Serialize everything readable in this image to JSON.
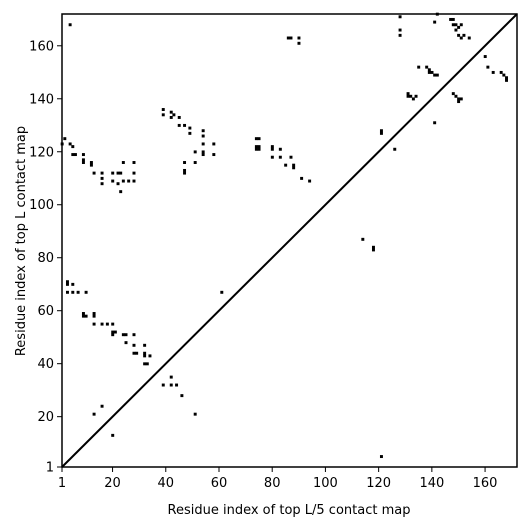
{
  "chart_data": {
    "type": "heatmap",
    "title": "",
    "xlabel": "Residue index of top L/5 contact map",
    "ylabel": "Residue index of top L contact map",
    "xlim": [
      1,
      172
    ],
    "ylim": [
      1,
      172
    ],
    "x_ticks": [
      1,
      20,
      40,
      60,
      80,
      100,
      120,
      140,
      160
    ],
    "y_ticks": [
      1,
      20,
      40,
      60,
      80,
      100,
      120,
      140,
      160
    ],
    "grid": false,
    "diagonal_line": true,
    "colors": {
      "contact": "#000000",
      "background": "#ffffff",
      "diagonal": "#000000"
    },
    "upper_triangle_contacts_top_L5": [
      [
        128,
        166
      ],
      [
        128,
        164
      ],
      [
        131,
        142
      ],
      [
        131,
        141
      ],
      [
        132,
        141
      ],
      [
        133,
        140
      ],
      [
        134,
        141
      ],
      [
        135,
        152
      ],
      [
        138,
        152
      ],
      [
        139,
        151
      ],
      [
        139,
        150
      ],
      [
        140,
        150
      ],
      [
        141,
        149
      ],
      [
        142,
        149
      ],
      [
        141,
        131
      ],
      [
        142,
        172
      ],
      [
        141,
        169
      ],
      [
        147,
        170
      ],
      [
        148,
        170
      ],
      [
        148,
        168
      ],
      [
        149,
        168
      ],
      [
        149,
        166
      ],
      [
        150,
        167
      ],
      [
        150,
        164
      ],
      [
        151,
        168
      ],
      [
        151,
        163
      ],
      [
        152,
        164
      ],
      [
        148,
        142
      ],
      [
        149,
        141
      ],
      [
        150,
        140
      ],
      [
        150,
        139
      ],
      [
        151,
        140
      ],
      [
        154,
        163
      ],
      [
        160,
        156
      ],
      [
        161,
        152
      ],
      [
        163,
        150
      ],
      [
        166,
        150
      ],
      [
        167,
        149
      ],
      [
        168,
        148
      ],
      [
        168,
        147
      ],
      [
        126,
        121
      ],
      [
        128,
        171
      ],
      [
        121,
        5
      ]
    ],
    "lower_triangle_contacts_top_L": [
      [
        4,
        168
      ],
      [
        2,
        125
      ],
      [
        1,
        123
      ],
      [
        4,
        123
      ],
      [
        5,
        122
      ],
      [
        5,
        119
      ],
      [
        6,
        119
      ],
      [
        9,
        119
      ],
      [
        9,
        117
      ],
      [
        9,
        116
      ],
      [
        12,
        116
      ],
      [
        12,
        115
      ],
      [
        13,
        112
      ],
      [
        16,
        112
      ],
      [
        16,
        110
      ],
      [
        16,
        108
      ],
      [
        20,
        112
      ],
      [
        20,
        109
      ],
      [
        22,
        108
      ],
      [
        22,
        112
      ],
      [
        23,
        112
      ],
      [
        23,
        105
      ],
      [
        24,
        116
      ],
      [
        24,
        109
      ],
      [
        26,
        109
      ],
      [
        28,
        116
      ],
      [
        28,
        112
      ],
      [
        28,
        109
      ],
      [
        39,
        136
      ],
      [
        39,
        134
      ],
      [
        42,
        135
      ],
      [
        43,
        134
      ],
      [
        42,
        133
      ],
      [
        45,
        133
      ],
      [
        45,
        130
      ],
      [
        47,
        130
      ],
      [
        49,
        129
      ],
      [
        49,
        127
      ],
      [
        54,
        128
      ],
      [
        54,
        126
      ],
      [
        54,
        123
      ],
      [
        58,
        123
      ],
      [
        54,
        120
      ],
      [
        54,
        119
      ],
      [
        58,
        119
      ],
      [
        51,
        120
      ],
      [
        51,
        116
      ],
      [
        47,
        116
      ],
      [
        47,
        113
      ],
      [
        47,
        112
      ],
      [
        74,
        125
      ],
      [
        75,
        125
      ],
      [
        74,
        122
      ],
      [
        74,
        121
      ],
      [
        75,
        122
      ],
      [
        75,
        121
      ],
      [
        80,
        122
      ],
      [
        80,
        121
      ],
      [
        83,
        121
      ],
      [
        80,
        118
      ],
      [
        83,
        118
      ],
      [
        87,
        118
      ],
      [
        85,
        115
      ],
      [
        88,
        115
      ],
      [
        88,
        114
      ],
      [
        91,
        110
      ],
      [
        94,
        109
      ],
      [
        86,
        163
      ],
      [
        87,
        163
      ],
      [
        90,
        163
      ],
      [
        90,
        161
      ],
      [
        114,
        87
      ],
      [
        118,
        84
      ],
      [
        118,
        83
      ],
      [
        121,
        128
      ],
      [
        121,
        127
      ],
      [
        61,
        67
      ],
      [
        3,
        71
      ],
      [
        3,
        70
      ],
      [
        5,
        70
      ],
      [
        3,
        67
      ],
      [
        5,
        67
      ],
      [
        7,
        67
      ],
      [
        10,
        67
      ],
      [
        9,
        59
      ],
      [
        10,
        58
      ],
      [
        9,
        58
      ],
      [
        13,
        59
      ],
      [
        13,
        58
      ],
      [
        13,
        55
      ],
      [
        16,
        55
      ],
      [
        18,
        55
      ],
      [
        20,
        55
      ],
      [
        20,
        52
      ],
      [
        21,
        52
      ],
      [
        20,
        51
      ],
      [
        24,
        51
      ],
      [
        25,
        51
      ],
      [
        28,
        51
      ],
      [
        25,
        48
      ],
      [
        28,
        47
      ],
      [
        28,
        44
      ],
      [
        29,
        44
      ],
      [
        32,
        47
      ],
      [
        32,
        44
      ],
      [
        32,
        43
      ],
      [
        34,
        43
      ],
      [
        32,
        40
      ],
      [
        33,
        40
      ],
      [
        39,
        32
      ],
      [
        42,
        35
      ],
      [
        42,
        32
      ],
      [
        44,
        32
      ],
      [
        46,
        28
      ],
      [
        51,
        21
      ],
      [
        13,
        21
      ],
      [
        16,
        24
      ],
      [
        20,
        13
      ]
    ]
  }
}
